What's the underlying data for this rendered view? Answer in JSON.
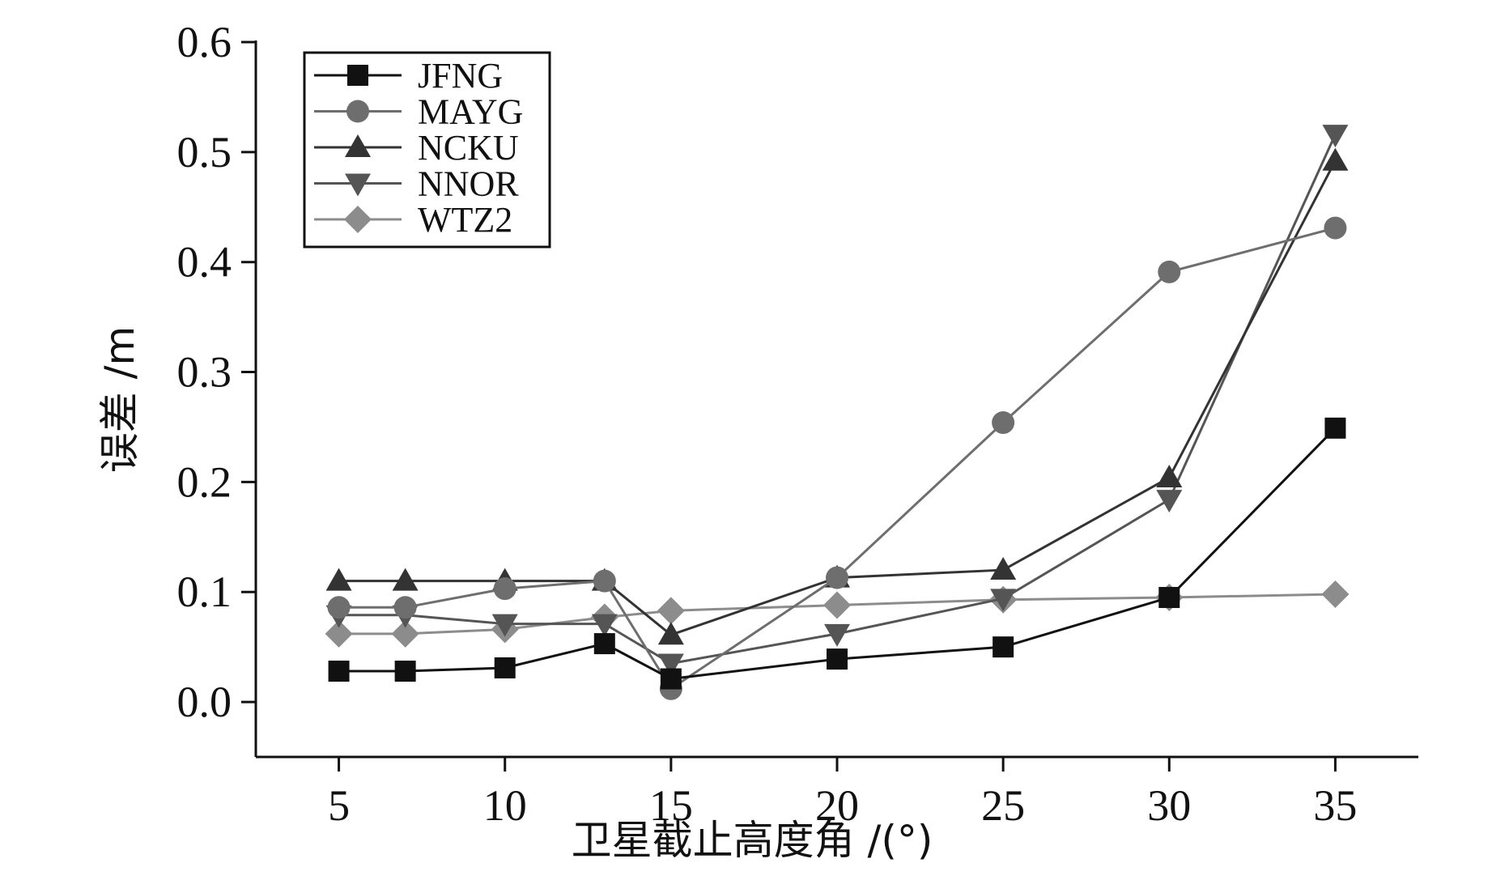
{
  "chart_data": {
    "type": "line",
    "title": "",
    "xlabel": "卫星截止高度角 /(°)",
    "ylabel": "误差 /m",
    "x": [
      5,
      7,
      10,
      13,
      15,
      20,
      25,
      30,
      35
    ],
    "xlim": [
      2.5,
      37.5
    ],
    "ylim": [
      -0.05,
      0.6
    ],
    "xticks": [
      "5",
      "10",
      "15",
      "20",
      "25",
      "30",
      "35"
    ],
    "xtick_values": [
      5,
      10,
      15,
      20,
      25,
      30,
      35
    ],
    "yticks": [
      "0.0",
      "0.1",
      "0.2",
      "0.3",
      "0.4",
      "0.5",
      "0.6"
    ],
    "ytick_values": [
      0.0,
      0.1,
      0.2,
      0.3,
      0.4,
      0.5,
      0.6
    ],
    "grid": false,
    "legend_position": "top-left",
    "series": [
      {
        "name": "JFNG",
        "marker": "square",
        "color": "#111111",
        "values": [
          0.028,
          0.028,
          0.031,
          0.053,
          0.021,
          0.039,
          0.05,
          0.095,
          0.249
        ]
      },
      {
        "name": "MAYG",
        "marker": "circle",
        "color": "#6e6e6e",
        "values": [
          0.086,
          0.086,
          0.103,
          0.11,
          0.012,
          0.113,
          0.254,
          0.391,
          0.431
        ]
      },
      {
        "name": "NCKU",
        "marker": "triangle-up",
        "color": "#333333",
        "values": [
          0.11,
          0.11,
          0.11,
          0.11,
          0.061,
          0.113,
          0.12,
          0.204,
          0.492
        ]
      },
      {
        "name": "NNOR",
        "marker": "triangle-down",
        "color": "#555555",
        "values": [
          0.079,
          0.079,
          0.071,
          0.071,
          0.035,
          0.062,
          0.094,
          0.184,
          0.516
        ]
      },
      {
        "name": "WTZ2",
        "marker": "diamond",
        "color": "#8c8c8c",
        "values": [
          0.062,
          0.062,
          0.066,
          0.077,
          0.083,
          0.088,
          0.093,
          0.095,
          0.098
        ]
      }
    ]
  }
}
